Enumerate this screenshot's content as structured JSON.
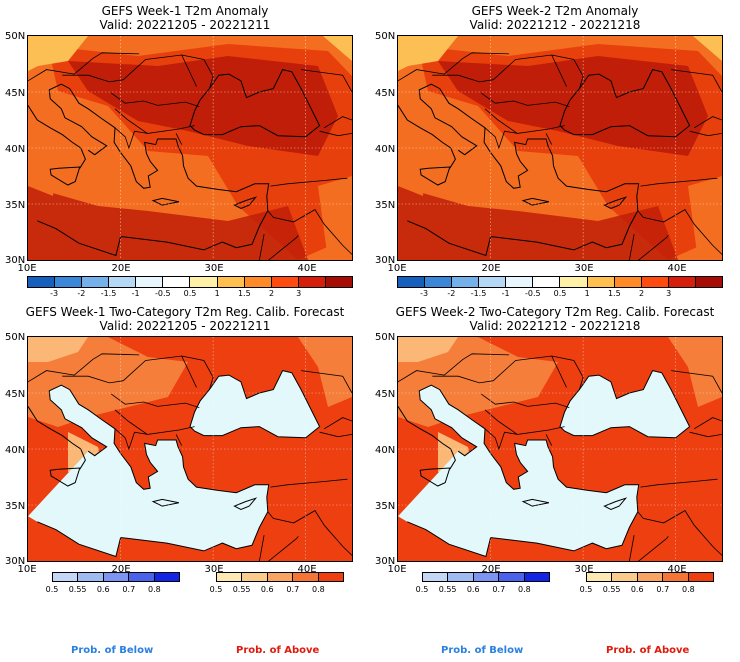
{
  "panels": [
    {
      "title1": "GEFS Week-1 T2m Anomaly",
      "title2": "Valid: 20221205 - 20221211",
      "kind": "anomaly"
    },
    {
      "title1": "GEFS Week-2 T2m Anomaly",
      "title2": "Valid: 20221212 - 20221218",
      "kind": "anomaly"
    },
    {
      "title1": "GEFS Week-1 Two-Category T2m Reg. Calib. Forecast",
      "title2": "Valid: 20221205 - 20221211",
      "kind": "prob"
    },
    {
      "title1": "GEFS Week-2 Two-Category T2m Reg. Calib. Forecast",
      "title2": "Valid: 20221212 - 20221218",
      "kind": "prob"
    }
  ],
  "axes": {
    "lat_labels": [
      "50N",
      "45N",
      "40N",
      "35N",
      "30N"
    ],
    "lon_labels": [
      "10E",
      "20E",
      "30E",
      "40E"
    ]
  },
  "anomaly_colorbar": {
    "labels": [
      "-3",
      "-2",
      "-1.5",
      "-1",
      "-0.5",
      "0.5",
      "1",
      "1.5",
      "2",
      "3"
    ],
    "colors": [
      "#1560bd",
      "#3a86d9",
      "#74b0ea",
      "#b5d8f5",
      "#e8f6fd",
      "#ffffff",
      "#fff0a8",
      "#ffc050",
      "#ff8a28",
      "#ff4a10",
      "#d61e0a",
      "#a80d05"
    ]
  },
  "prob_below_colorbar": {
    "labels": [
      "0.5",
      "0.55",
      "0.6",
      "0.7",
      "0.8"
    ],
    "colors": [
      "#c5d7f7",
      "#a0baf2",
      "#7d94f0",
      "#4a62ec",
      "#1424e6"
    ]
  },
  "prob_above_colorbar": {
    "labels": [
      "0.5",
      "0.55",
      "0.6",
      "0.7",
      "0.8"
    ],
    "colors": [
      "#fde9b3",
      "#fbcb8b",
      "#f8a564",
      "#f47535",
      "#ef3f10"
    ]
  },
  "footer": {
    "prob_below": "Prob. of Below",
    "prob_above": "Prob. of Above"
  },
  "colors": {
    "anomaly_base": "#e8400c",
    "anomaly_dark": "#c01e08",
    "anomaly_light": "#f46e22",
    "anomaly_pale": "#fbbf53",
    "prob_high": "#ed3f10",
    "prob_mid": "#f47e3a",
    "prob_low": "#fbb775",
    "sea": "#e2f8fb"
  }
}
